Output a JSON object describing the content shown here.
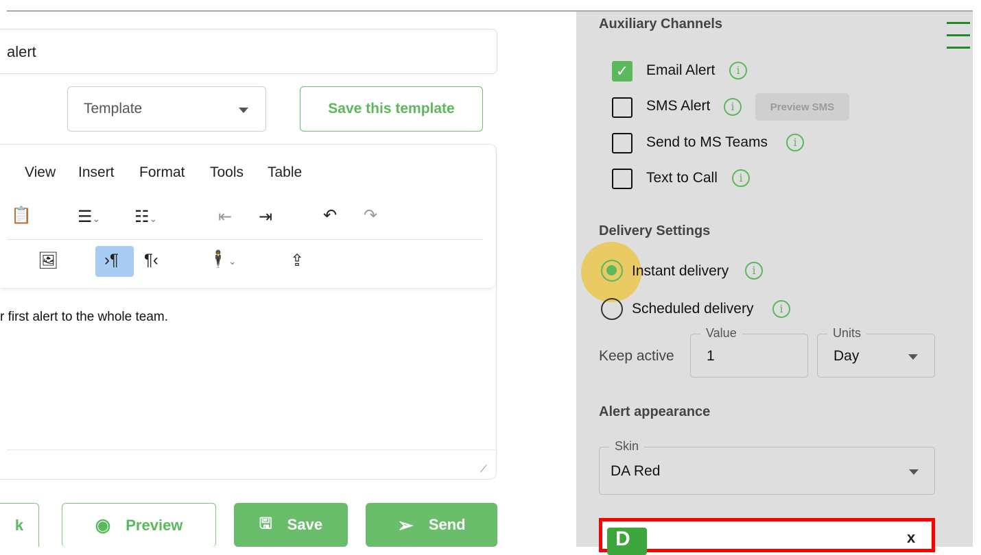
{
  "compose": {
    "title_value": "alert",
    "template_select": "Template",
    "save_template": "Save this template",
    "menu": [
      "View",
      "Insert",
      "Format",
      "Tools",
      "Table"
    ],
    "body_text": "r first alert to the whole team.",
    "buttons": {
      "back": "k",
      "preview": "Preview",
      "save": "Save",
      "send": "Send"
    }
  },
  "panel": {
    "aux_title": "Auxiliary Channels",
    "channels": [
      {
        "label": "Email Alert",
        "checked": true
      },
      {
        "label": "SMS Alert",
        "checked": false
      },
      {
        "label": "Send to MS Teams",
        "checked": false
      },
      {
        "label": "Text to Call",
        "checked": false
      }
    ],
    "preview_sms": "Preview SMS",
    "delivery_title": "Delivery Settings",
    "instant": "Instant delivery",
    "scheduled": "Scheduled delivery",
    "selected_delivery": "Instant delivery",
    "keep_active": "Keep active",
    "value_label": "Value",
    "value": "1",
    "units_label": "Units",
    "units": "Day",
    "appearance_title": "Alert appearance",
    "skin_label": "Skin",
    "skin": "DA Red",
    "close": "x",
    "logo_letter": "D"
  },
  "colors": {
    "accent": "#5cb85c",
    "panel": "#dedede",
    "skin_border": "#ff0000"
  }
}
